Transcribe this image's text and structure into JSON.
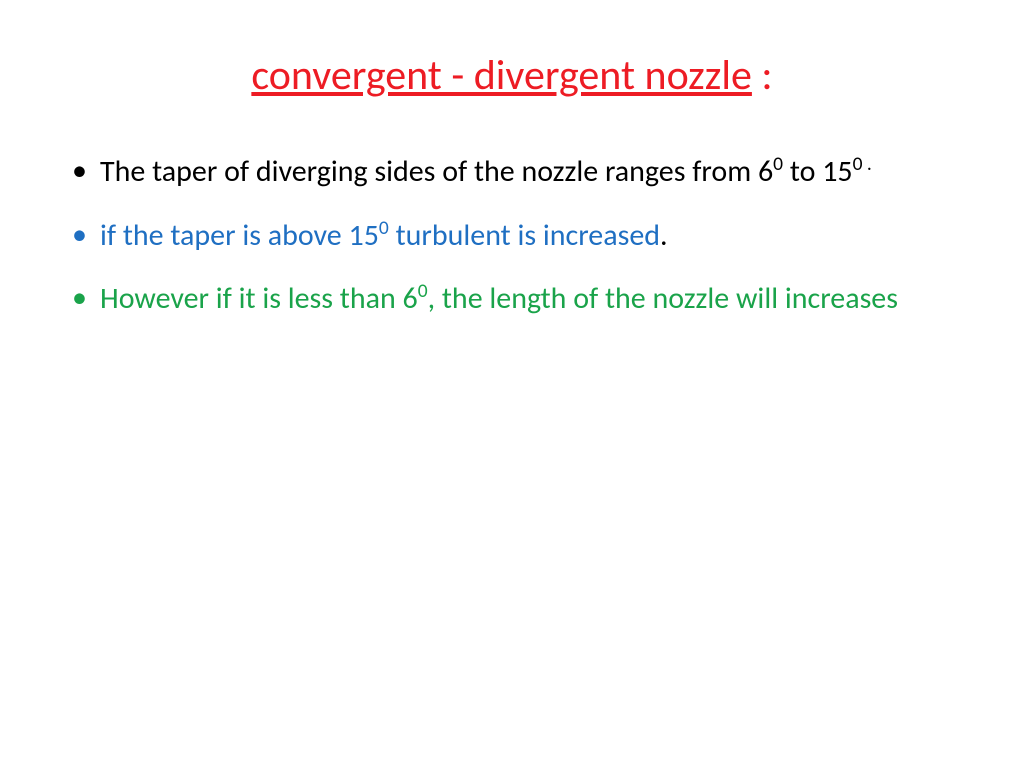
{
  "title": {
    "underlined_text": "convergent - divergent nozzle",
    "trailing_text": " :",
    "color": "#ed1c24"
  },
  "bullets": [
    {
      "segments": [
        {
          "text": "The taper of diverging sides of the nozzle ranges from 6",
          "color": "#000000"
        },
        {
          "text": "0",
          "color": "#000000",
          "sup": true
        },
        {
          "text": " to 15",
          "color": "#000000"
        },
        {
          "text": "0 .",
          "color": "#000000",
          "sup": true
        }
      ],
      "bullet_color": "#000000"
    },
    {
      "segments": [
        {
          "text": "if the taper is above 15",
          "color": "#1f6fc2"
        },
        {
          "text": "0",
          "color": "#1f6fc2",
          "sup": true
        },
        {
          "text": " turbulent is increased",
          "color": "#1f6fc2"
        },
        {
          "text": ".",
          "color": "#000000"
        }
      ],
      "bullet_color": "#1f6fc2"
    },
    {
      "segments": [
        {
          "text": "However if it is less than 6",
          "color": "#1aa34a"
        },
        {
          "text": "0",
          "color": "#1aa34a",
          "sup": true
        },
        {
          "text": ", the length of the nozzle will increases",
          "color": "#1aa34a"
        }
      ],
      "bullet_color": "#1aa34a"
    }
  ]
}
